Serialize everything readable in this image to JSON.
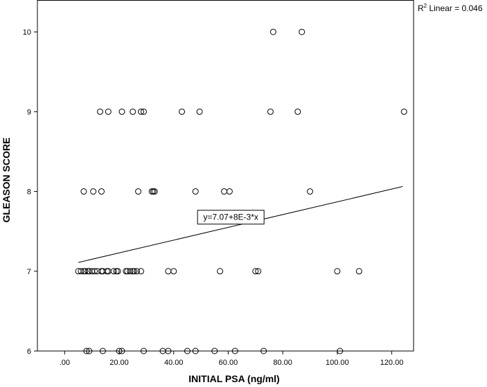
{
  "chart_data": {
    "type": "scatter",
    "title": "",
    "xlabel": "INITIAL PSA (ng/ml)",
    "ylabel": "GLEASON SCORE",
    "xlim": [
      -10,
      128
    ],
    "ylim": [
      6,
      10.4
    ],
    "xticks": [
      0,
      20,
      40,
      60,
      80,
      100,
      120
    ],
    "xtick_labels": [
      ".00",
      "20.00",
      "40.00",
      "60.00",
      "80.00",
      "100.00",
      "120.00"
    ],
    "yticks": [
      6,
      7,
      8,
      9,
      10
    ],
    "ytick_labels": [
      "6",
      "7",
      "8",
      "9",
      "10"
    ],
    "grid": false,
    "points": [
      {
        "x": 76.5,
        "y": 10
      },
      {
        "x": 87,
        "y": 10
      },
      {
        "x": 13,
        "y": 9
      },
      {
        "x": 16,
        "y": 9
      },
      {
        "x": 21,
        "y": 9
      },
      {
        "x": 25,
        "y": 9
      },
      {
        "x": 28,
        "y": 9
      },
      {
        "x": 29,
        "y": 9
      },
      {
        "x": 43,
        "y": 9
      },
      {
        "x": 49.5,
        "y": 9
      },
      {
        "x": 75.5,
        "y": 9
      },
      {
        "x": 85.5,
        "y": 9
      },
      {
        "x": 124.5,
        "y": 9
      },
      {
        "x": 7,
        "y": 8
      },
      {
        "x": 10.5,
        "y": 8
      },
      {
        "x": 13.5,
        "y": 8
      },
      {
        "x": 27,
        "y": 8
      },
      {
        "x": 32,
        "y": 8
      },
      {
        "x": 32.5,
        "y": 8
      },
      {
        "x": 33,
        "y": 8
      },
      {
        "x": 48,
        "y": 8
      },
      {
        "x": 58.5,
        "y": 8
      },
      {
        "x": 60.5,
        "y": 8
      },
      {
        "x": 90,
        "y": 8
      },
      {
        "x": 5,
        "y": 7
      },
      {
        "x": 6,
        "y": 7
      },
      {
        "x": 7,
        "y": 7
      },
      {
        "x": 7.5,
        "y": 7
      },
      {
        "x": 8.5,
        "y": 7
      },
      {
        "x": 9,
        "y": 7
      },
      {
        "x": 10,
        "y": 7
      },
      {
        "x": 11,
        "y": 7
      },
      {
        "x": 12,
        "y": 7
      },
      {
        "x": 13.5,
        "y": 7
      },
      {
        "x": 14,
        "y": 7
      },
      {
        "x": 15.5,
        "y": 7
      },
      {
        "x": 16,
        "y": 7
      },
      {
        "x": 18,
        "y": 7
      },
      {
        "x": 19,
        "y": 7
      },
      {
        "x": 19.5,
        "y": 7
      },
      {
        "x": 22.5,
        "y": 7
      },
      {
        "x": 23,
        "y": 7
      },
      {
        "x": 24,
        "y": 7
      },
      {
        "x": 25,
        "y": 7
      },
      {
        "x": 25.5,
        "y": 7
      },
      {
        "x": 26.5,
        "y": 7
      },
      {
        "x": 28,
        "y": 7
      },
      {
        "x": 38,
        "y": 7
      },
      {
        "x": 40,
        "y": 7
      },
      {
        "x": 57,
        "y": 7
      },
      {
        "x": 70,
        "y": 7
      },
      {
        "x": 71,
        "y": 7
      },
      {
        "x": 100,
        "y": 7
      },
      {
        "x": 108,
        "y": 7
      },
      {
        "x": 8,
        "y": 6
      },
      {
        "x": 9,
        "y": 6
      },
      {
        "x": 14,
        "y": 6
      },
      {
        "x": 20,
        "y": 6
      },
      {
        "x": 21,
        "y": 6
      },
      {
        "x": 29,
        "y": 6
      },
      {
        "x": 36,
        "y": 6
      },
      {
        "x": 38,
        "y": 6
      },
      {
        "x": 45,
        "y": 6
      },
      {
        "x": 48,
        "y": 6
      },
      {
        "x": 55,
        "y": 6
      },
      {
        "x": 62.5,
        "y": 6
      },
      {
        "x": 73,
        "y": 6
      },
      {
        "x": 101,
        "y": 6
      }
    ],
    "fit_line": {
      "x_range": [
        5,
        124
      ],
      "intercept": 7.07,
      "slope": 0.008,
      "equation_label": "y=7.07+8E-3*x",
      "r2_label_prefix": "R",
      "r2_label_sup": "2",
      "r2_label_suffix": " Linear = 0.046"
    }
  }
}
